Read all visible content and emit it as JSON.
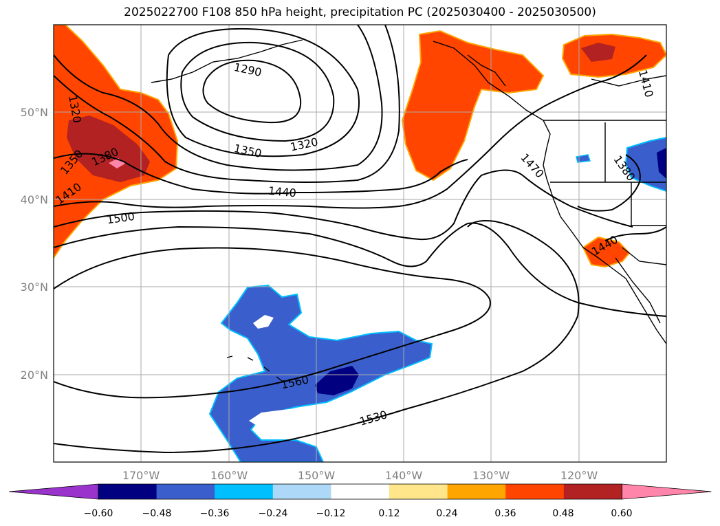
{
  "title": "2025022700 F108 850 hPa height, precipitation PC (2025030400 - 2025030500)",
  "lat_labels": [
    "50°N",
    "40°N",
    "30°N",
    "20°N"
  ],
  "lon_labels": [
    "170°W",
    "160°W",
    "150°W",
    "140°W",
    "130°W",
    "120°W"
  ],
  "contour_labels": [
    "1290",
    "1320",
    "1320",
    "1350",
    "1350",
    "1380",
    "1380",
    "1410",
    "1410",
    "1440",
    "1440",
    "1470",
    "1500",
    "1560",
    "1530"
  ],
  "colorbar": {
    "ticks": [
      "−0.60",
      "−0.48",
      "−0.36",
      "−0.24",
      "−0.12",
      "0.12",
      "0.24",
      "0.36",
      "0.48",
      "0.60"
    ],
    "colors": [
      "#9933cc",
      "#000080",
      "#3a5fcd",
      "#00bfff",
      "#add8f7",
      "#ffffff",
      "#ffe68a",
      "#ffa500",
      "#ff4500",
      "#b22222",
      "#ff85aa"
    ]
  }
}
